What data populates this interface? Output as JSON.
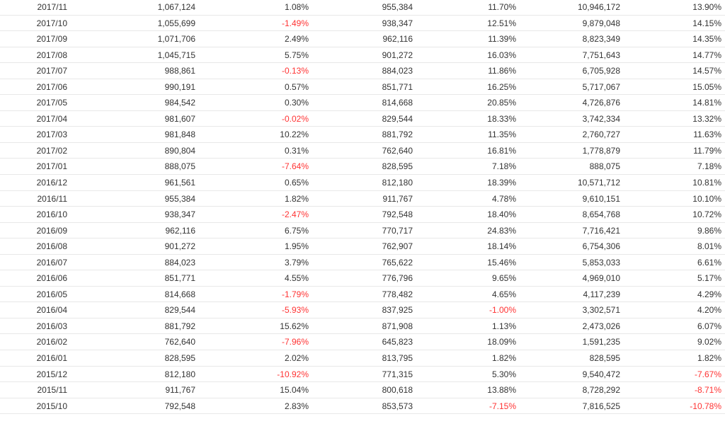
{
  "colors": {
    "text": "#333333",
    "negative": "#ff3333",
    "row_border": "#e8e8e8"
  },
  "table": {
    "rows": [
      [
        "2017/11",
        "1,067,124",
        "1.08%",
        "955,384",
        "11.70%",
        "10,946,172",
        "13.90%"
      ],
      [
        "2017/10",
        "1,055,699",
        "-1.49%",
        "938,347",
        "12.51%",
        "9,879,048",
        "14.15%"
      ],
      [
        "2017/09",
        "1,071,706",
        "2.49%",
        "962,116",
        "11.39%",
        "8,823,349",
        "14.35%"
      ],
      [
        "2017/08",
        "1,045,715",
        "5.75%",
        "901,272",
        "16.03%",
        "7,751,643",
        "14.77%"
      ],
      [
        "2017/07",
        "988,861",
        "-0.13%",
        "884,023",
        "11.86%",
        "6,705,928",
        "14.57%"
      ],
      [
        "2017/06",
        "990,191",
        "0.57%",
        "851,771",
        "16.25%",
        "5,717,067",
        "15.05%"
      ],
      [
        "2017/05",
        "984,542",
        "0.30%",
        "814,668",
        "20.85%",
        "4,726,876",
        "14.81%"
      ],
      [
        "2017/04",
        "981,607",
        "-0.02%",
        "829,544",
        "18.33%",
        "3,742,334",
        "13.32%"
      ],
      [
        "2017/03",
        "981,848",
        "10.22%",
        "881,792",
        "11.35%",
        "2,760,727",
        "11.63%"
      ],
      [
        "2017/02",
        "890,804",
        "0.31%",
        "762,640",
        "16.81%",
        "1,778,879",
        "11.79%"
      ],
      [
        "2017/01",
        "888,075",
        "-7.64%",
        "828,595",
        "7.18%",
        "888,075",
        "7.18%"
      ],
      [
        "2016/12",
        "961,561",
        "0.65%",
        "812,180",
        "18.39%",
        "10,571,712",
        "10.81%"
      ],
      [
        "2016/11",
        "955,384",
        "1.82%",
        "911,767",
        "4.78%",
        "9,610,151",
        "10.10%"
      ],
      [
        "2016/10",
        "938,347",
        "-2.47%",
        "792,548",
        "18.40%",
        "8,654,768",
        "10.72%"
      ],
      [
        "2016/09",
        "962,116",
        "6.75%",
        "770,717",
        "24.83%",
        "7,716,421",
        "9.86%"
      ],
      [
        "2016/08",
        "901,272",
        "1.95%",
        "762,907",
        "18.14%",
        "6,754,306",
        "8.01%"
      ],
      [
        "2016/07",
        "884,023",
        "3.79%",
        "765,622",
        "15.46%",
        "5,853,033",
        "6.61%"
      ],
      [
        "2016/06",
        "851,771",
        "4.55%",
        "776,796",
        "9.65%",
        "4,969,010",
        "5.17%"
      ],
      [
        "2016/05",
        "814,668",
        "-1.79%",
        "778,482",
        "4.65%",
        "4,117,239",
        "4.29%"
      ],
      [
        "2016/04",
        "829,544",
        "-5.93%",
        "837,925",
        "-1.00%",
        "3,302,571",
        "4.20%"
      ],
      [
        "2016/03",
        "881,792",
        "15.62%",
        "871,908",
        "1.13%",
        "2,473,026",
        "6.07%"
      ],
      [
        "2016/02",
        "762,640",
        "-7.96%",
        "645,823",
        "18.09%",
        "1,591,235",
        "9.02%"
      ],
      [
        "2016/01",
        "828,595",
        "2.02%",
        "813,795",
        "1.82%",
        "828,595",
        "1.82%"
      ],
      [
        "2015/12",
        "812,180",
        "-10.92%",
        "771,315",
        "5.30%",
        "9,540,472",
        "-7.67%"
      ],
      [
        "2015/11",
        "911,767",
        "15.04%",
        "800,618",
        "13.88%",
        "8,728,292",
        "-8.71%"
      ],
      [
        "2015/10",
        "792,548",
        "2.83%",
        "853,573",
        "-7.15%",
        "7,816,525",
        "-10.78%"
      ]
    ]
  }
}
